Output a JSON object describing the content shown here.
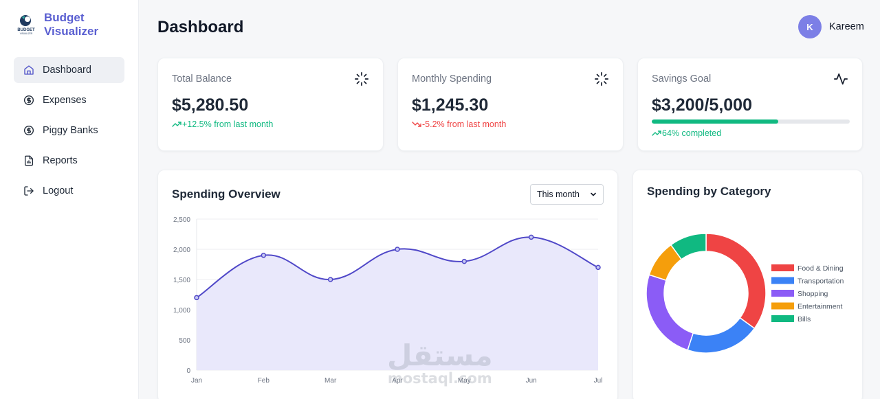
{
  "app": {
    "name_line1": "Budget",
    "name_line2": "Visualizer",
    "logo_text": "BUDGET",
    "logo_subtext": "VISUALIZER",
    "brand_color": "#5a5fd1"
  },
  "sidebar": {
    "items": [
      {
        "label": "Dashboard",
        "icon": "home-icon",
        "active": true
      },
      {
        "label": "Expenses",
        "icon": "dollar-circle-icon",
        "active": false
      },
      {
        "label": "Piggy Banks",
        "icon": "dollar-circle-icon",
        "active": false
      },
      {
        "label": "Reports",
        "icon": "report-file-icon",
        "active": false
      },
      {
        "label": "Logout",
        "icon": "logout-icon",
        "active": false
      }
    ]
  },
  "header": {
    "title": "Dashboard",
    "user_initial": "K",
    "user_name": "Kareem"
  },
  "stats": [
    {
      "label": "Total Balance",
      "value": "$5,280.50",
      "trend": "+12.5% from last month",
      "direction": "up",
      "icon": "loader-icon"
    },
    {
      "label": "Monthly Spending",
      "value": "$1,245.30",
      "trend": "-5.2% from last month",
      "direction": "down",
      "icon": "loader-icon"
    },
    {
      "label": "Savings Goal",
      "value": "$3,200/5,000",
      "trend": "64% completed",
      "direction": "up",
      "icon": "activity-icon",
      "progress": 0.64
    }
  ],
  "overview": {
    "title": "Spending Overview",
    "period_selected": "This month"
  },
  "category": {
    "title": "Spending by Category"
  },
  "watermark": {
    "arabic": "مستقل",
    "latin": "mostaql.com"
  },
  "chart_data": [
    {
      "type": "area",
      "categories": [
        "Jan",
        "Feb",
        "Mar",
        "Apr",
        "May",
        "Jun",
        "Jul"
      ],
      "values": [
        1200,
        1900,
        1500,
        2000,
        1800,
        2200,
        1700
      ],
      "ylim": [
        0,
        2500
      ],
      "yticks": [
        "0",
        "500",
        "1,000",
        "1,500",
        "2,000",
        "2,500"
      ],
      "color": "#5048c8",
      "fill": "#e9e8fb",
      "grid": true
    },
    {
      "type": "pie",
      "donut": true,
      "legend_position": "right",
      "labels": [
        "Food & Dining",
        "Transportation",
        "Shopping",
        "Entertainment",
        "Bills"
      ],
      "values": [
        35,
        20,
        25,
        10,
        10
      ],
      "colors": [
        "#ef4444",
        "#3b82f6",
        "#8b5cf6",
        "#f59e0b",
        "#10b981"
      ]
    }
  ]
}
